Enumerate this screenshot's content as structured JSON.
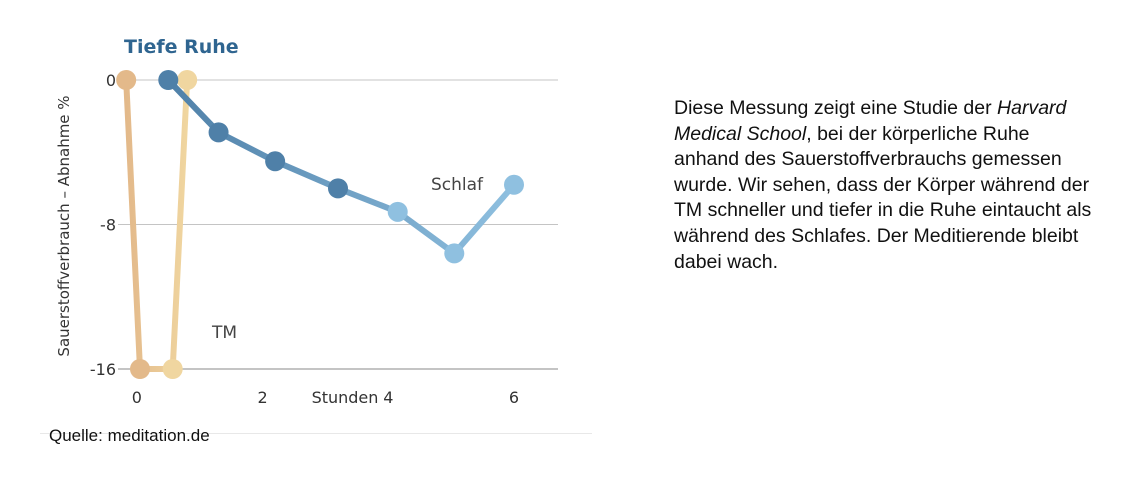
{
  "chart_data": {
    "type": "line",
    "title": "Tiefe Ruhe",
    "xlabel": "Stunden",
    "ylabel": "Sauerstoffverbrauch – Abnahme %",
    "xlim": [
      -0.3,
      6.7
    ],
    "ylim": [
      -16,
      0
    ],
    "x_ticks": [
      {
        "value": 0,
        "label": "0"
      },
      {
        "value": 2,
        "label": "2"
      },
      {
        "value": 4,
        "label": "4"
      },
      {
        "value": 6,
        "label": "6"
      }
    ],
    "y_ticks": [
      {
        "value": 0,
        "label": "0"
      },
      {
        "value": -8,
        "label": "-8"
      },
      {
        "value": -16,
        "label": "-16"
      }
    ],
    "grid": "horizontal",
    "series": [
      {
        "name": "TM",
        "color_start": "#e3b98a",
        "color_end": "#f0d6a0",
        "points": [
          {
            "x": -0.17,
            "y": 0
          },
          {
            "x": 0.05,
            "y": -16
          },
          {
            "x": 0.57,
            "y": -16
          },
          {
            "x": 0.8,
            "y": 0
          }
        ]
      },
      {
        "name": "Schlaf",
        "color_start": "#4f80a8",
        "color_end": "#8fc0e0",
        "points": [
          {
            "x": 0.5,
            "y": 0
          },
          {
            "x": 1.3,
            "y": -2.9
          },
          {
            "x": 2.2,
            "y": -4.5
          },
          {
            "x": 3.2,
            "y": -6.0
          },
          {
            "x": 4.15,
            "y": -7.3
          },
          {
            "x": 5.05,
            "y": -9.6
          },
          {
            "x": 6.0,
            "y": -5.8
          }
        ]
      }
    ]
  },
  "source": "Quelle: meditation.de",
  "description": {
    "before": "Diese Messung zeigt eine Studie der ",
    "italic": "Harvard Medical School",
    "after": ", bei der körperliche Ruhe anhand des Sauerstoffverbrauchs gemessen wurde. Wir sehen, dass der Körper während der TM schneller und tiefer in die Ruhe eintaucht als während des Schlafes. Der Meditierende bleibt dabei wach."
  }
}
